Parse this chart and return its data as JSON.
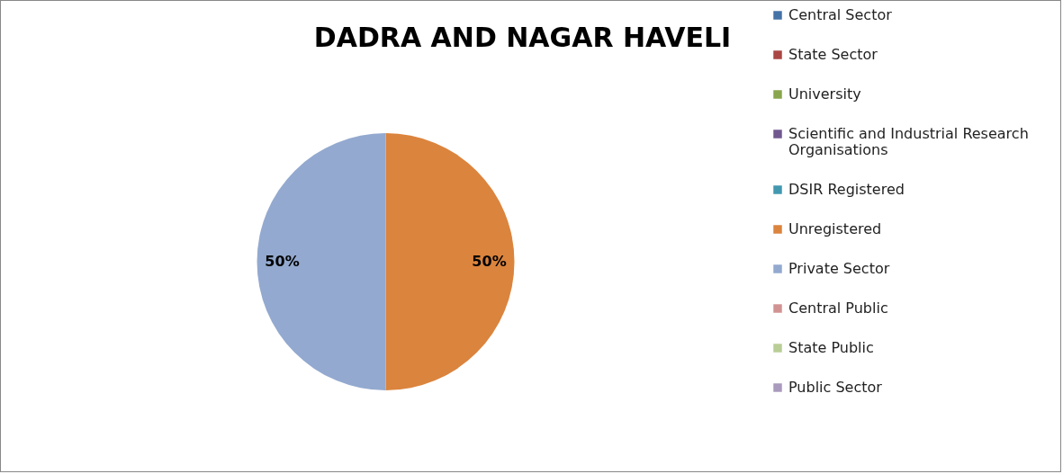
{
  "chart_data": {
    "type": "pie",
    "title": "DADRA AND NAGAR HAVELI",
    "categories": [
      "Central Sector",
      "State Sector",
      "University",
      "Scientific and Industrial Research Organisations",
      "DSIR Registered",
      "Unregistered",
      "Private Sector",
      "Central Public",
      "State Public",
      "Public Sector"
    ],
    "values": [
      0,
      0,
      0,
      0,
      0,
      50,
      50,
      0,
      0,
      0
    ],
    "value_labels": [
      null,
      null,
      null,
      null,
      null,
      "50%",
      "50%",
      null,
      null,
      null
    ],
    "colors": [
      "#4572a7",
      "#aa4643",
      "#89a54e",
      "#71588f",
      "#4198af",
      "#db843d",
      "#93a9cf",
      "#d19392",
      "#b9cd96",
      "#a99bbd"
    ],
    "legend": "right"
  }
}
